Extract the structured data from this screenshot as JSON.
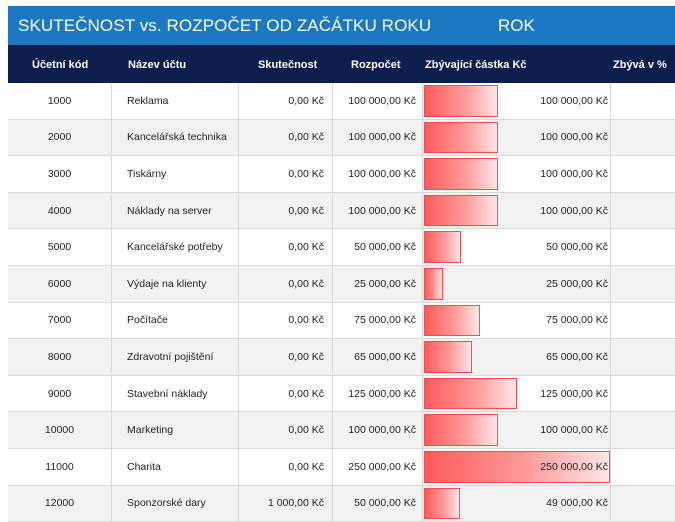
{
  "report": {
    "title": "SKUTEČNOST vs. ROZPOČET OD ZAČÁTKU ROKU",
    "period": "ROK"
  },
  "headers": {
    "code": "Účetní kód",
    "name": "Název účtu",
    "actual": "Skutečnost",
    "budget": "Rozpočet",
    "remaining": "Zbývající částka Kč",
    "percent": "Zbývá v %"
  },
  "colors": {
    "title_bar": "#1b78c3",
    "header_bar": "#0d1e4d",
    "data_bar": "#ff5b5b"
  },
  "rows": [
    {
      "code": "1000",
      "name": "Reklama",
      "actual": "0,00 Kč",
      "budget": "100 000,00 Kč",
      "remaining": "100 000,00 Kč",
      "remaining_value": 100000
    },
    {
      "code": "2000",
      "name": "Kancelářská technika",
      "actual": "0,00 Kč",
      "budget": "100 000,00 Kč",
      "remaining": "100 000,00 Kč",
      "remaining_value": 100000
    },
    {
      "code": "3000",
      "name": "Tiskárny",
      "actual": "0,00 Kč",
      "budget": "100 000,00 Kč",
      "remaining": "100 000,00 Kč",
      "remaining_value": 100000
    },
    {
      "code": "4000",
      "name": "Náklady na server",
      "actual": "0,00 Kč",
      "budget": "100 000,00 Kč",
      "remaining": "100 000,00 Kč",
      "remaining_value": 100000
    },
    {
      "code": "5000",
      "name": "Kancelářské potřeby",
      "actual": "0,00 Kč",
      "budget": "50 000,00 Kč",
      "remaining": "50 000,00 Kč",
      "remaining_value": 50000
    },
    {
      "code": "6000",
      "name": "Výdaje na klienty",
      "actual": "0,00 Kč",
      "budget": "25 000,00 Kč",
      "remaining": "25 000,00 Kč",
      "remaining_value": 25000
    },
    {
      "code": "7000",
      "name": "Počítače",
      "actual": "0,00 Kč",
      "budget": "75 000,00 Kč",
      "remaining": "75 000,00 Kč",
      "remaining_value": 75000
    },
    {
      "code": "8000",
      "name": "Zdravotní pojištění",
      "actual": "0,00 Kč",
      "budget": "65 000,00 Kč",
      "remaining": "65 000,00 Kč",
      "remaining_value": 65000
    },
    {
      "code": "9000",
      "name": "Stavební náklady",
      "actual": "0,00 Kč",
      "budget": "125 000,00 Kč",
      "remaining": "125 000,00 Kč",
      "remaining_value": 125000
    },
    {
      "code": "10000",
      "name": "Marketing",
      "actual": "0,00 Kč",
      "budget": "100 000,00 Kč",
      "remaining": "100 000,00 Kč",
      "remaining_value": 100000
    },
    {
      "code": "11000",
      "name": "Charita",
      "actual": "0,00 Kč",
      "budget": "250 000,00 Kč",
      "remaining": "250 000,00 Kč",
      "remaining_value": 250000
    },
    {
      "code": "12000",
      "name": "Sponzorské dary",
      "actual": "1 000,00 Kč",
      "budget": "50 000,00 Kč",
      "remaining": "49 000,00 Kč",
      "remaining_value": 49000
    }
  ]
}
